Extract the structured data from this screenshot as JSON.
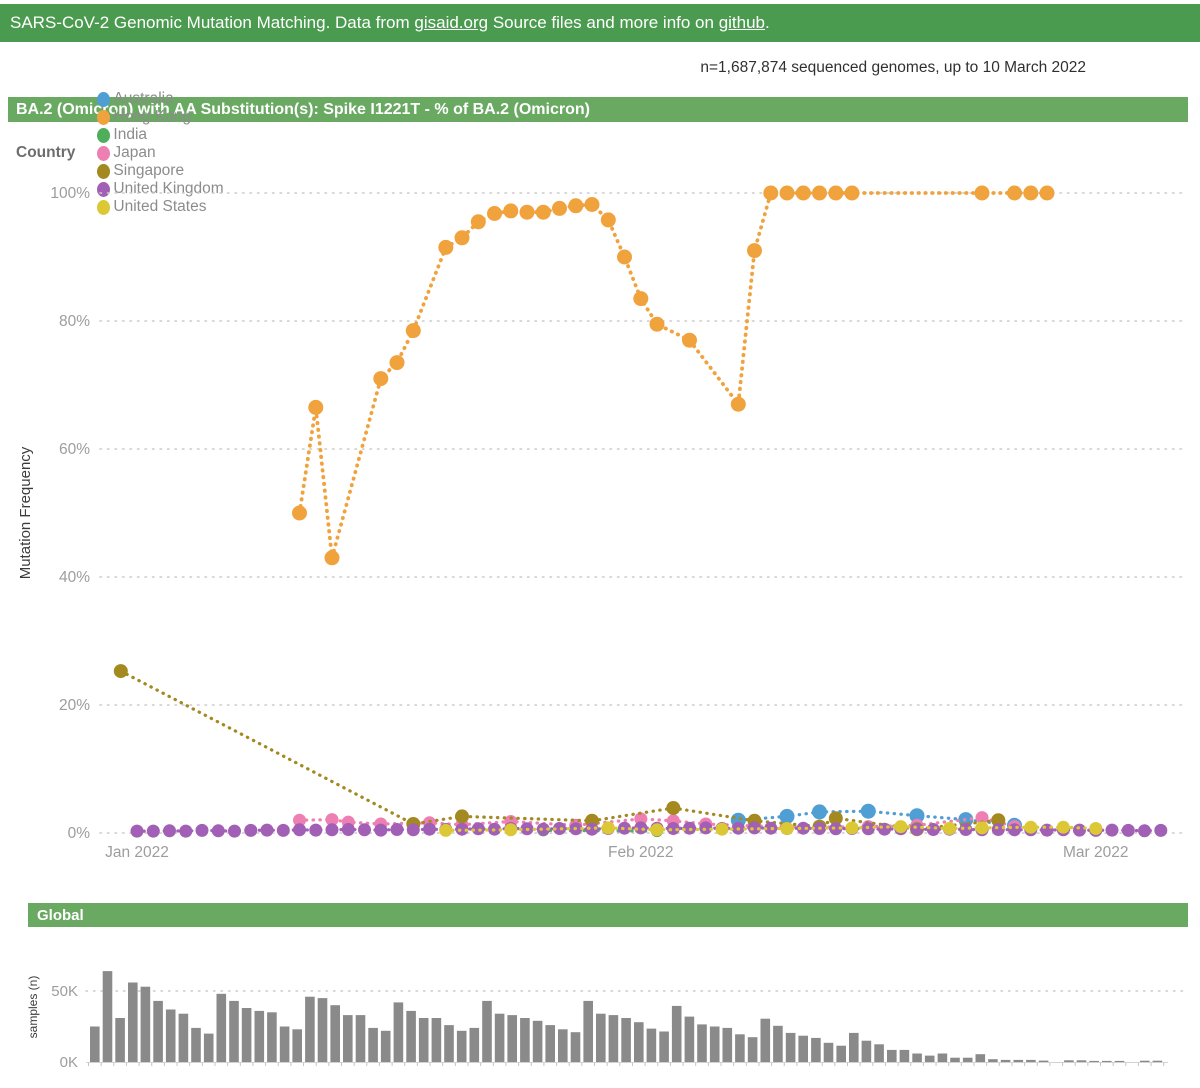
{
  "header": {
    "prefix": "SARS-CoV-2 Genomic Mutation Matching. Data from ",
    "gisaid_link": "gisaid.org",
    "mid": " Source files and more info on ",
    "github_link": "github",
    "suffix": "."
  },
  "subtitle": "n=1,687,874 sequenced genomes, up to 10 March 2022",
  "colors": {
    "header_green": "#4a9b4f",
    "section_green": "#69a962",
    "bar_gray": "#8a8a8a",
    "axis_text_gray": "#9d9d9d",
    "dark_label": "#3c3c3c",
    "gridline_gray": "#cbcbcb"
  },
  "chart_data": [
    {
      "type": "scatter",
      "title": "BA.2 (Omicron) with AA Substitution(s): Spike I1221T - % of BA.2 (Omicron)",
      "legend_label": "Country",
      "ylabel": "Mutation Frequency",
      "ylim": [
        0,
        100
      ],
      "grid": "dotted-horizontal",
      "legend_position": "top",
      "y_ticks": [
        {
          "v": 0,
          "label": "0%"
        },
        {
          "v": 20,
          "label": "20%"
        },
        {
          "v": 40,
          "label": "40%"
        },
        {
          "v": 60,
          "label": "60%"
        },
        {
          "v": 80,
          "label": "80%"
        },
        {
          "v": 100,
          "label": "100%"
        }
      ],
      "x_ticks": [
        {
          "date": "2022-01-01",
          "label": "Jan 2022"
        },
        {
          "date": "2022-02-01",
          "label": "Feb 2022"
        },
        {
          "date": "2022-03-01",
          "label": "Mar 2022"
        }
      ],
      "series": [
        {
          "name": "Australia",
          "color": "#4f9fd4",
          "marker_r": 7.5,
          "points": [
            [
              "2022-02-07",
              2.0
            ],
            [
              "2022-02-10",
              2.6
            ],
            [
              "2022-02-12",
              3.3
            ],
            [
              "2022-02-15",
              3.4
            ],
            [
              "2022-02-18",
              2.7
            ],
            [
              "2022-02-21",
              2.1
            ],
            [
              "2022-02-24",
              1.2
            ]
          ]
        },
        {
          "name": "Hong Kong",
          "color": "#f0a23d",
          "marker_r": 7.5,
          "points": [
            [
              "2022-01-11",
              50
            ],
            [
              "2022-01-12",
              66.5
            ],
            [
              "2022-01-13",
              43
            ],
            [
              "2022-01-16",
              71
            ],
            [
              "2022-01-17",
              73.5
            ],
            [
              "2022-01-18",
              78.5
            ],
            [
              "2022-01-20",
              91.5
            ],
            [
              "2022-01-21",
              93
            ],
            [
              "2022-01-22",
              95.5
            ],
            [
              "2022-01-23",
              96.8
            ],
            [
              "2022-01-24",
              97.2
            ],
            [
              "2022-01-25",
              97
            ],
            [
              "2022-01-26",
              97
            ],
            [
              "2022-01-27",
              97.6
            ],
            [
              "2022-01-28",
              98
            ],
            [
              "2022-01-29",
              98.2
            ],
            [
              "2022-01-30",
              95.8
            ],
            [
              "2022-01-31",
              90
            ],
            [
              "2022-02-01",
              83.5
            ],
            [
              "2022-02-02",
              79.5
            ],
            [
              "2022-02-04",
              77
            ],
            [
              "2022-02-07",
              67
            ],
            [
              "2022-02-08",
              91
            ],
            [
              "2022-02-09",
              100
            ],
            [
              "2022-02-10",
              100
            ],
            [
              "2022-02-11",
              100
            ],
            [
              "2022-02-12",
              100
            ],
            [
              "2022-02-13",
              100
            ],
            [
              "2022-02-14",
              100
            ],
            [
              "2022-02-22",
              100
            ],
            [
              "2022-02-24",
              100
            ],
            [
              "2022-02-25",
              100
            ],
            [
              "2022-02-26",
              100
            ]
          ]
        },
        {
          "name": "India",
          "color": "#4fae5c",
          "marker_r": 6,
          "points": [
            [
              "2022-01-26",
              0.4
            ],
            [
              "2022-02-02",
              0.3
            ]
          ]
        },
        {
          "name": "Japan",
          "color": "#ee7fb3",
          "marker_r": 6.5,
          "points": [
            [
              "2022-01-11",
              2.0
            ],
            [
              "2022-01-13",
              2.1
            ],
            [
              "2022-01-14",
              1.7
            ],
            [
              "2022-01-16",
              1.4
            ],
            [
              "2022-01-19",
              1.6
            ],
            [
              "2022-01-21",
              1.3
            ],
            [
              "2022-01-24",
              1.8
            ],
            [
              "2022-01-28",
              1.2
            ],
            [
              "2022-02-01",
              2.2
            ],
            [
              "2022-02-03",
              1.9
            ],
            [
              "2022-02-05",
              1.4
            ],
            [
              "2022-02-08",
              1.1
            ],
            [
              "2022-02-12",
              0.9
            ],
            [
              "2022-02-15",
              1.0
            ],
            [
              "2022-02-18",
              1.2
            ],
            [
              "2022-02-22",
              2.4
            ],
            [
              "2022-02-24",
              1.0
            ]
          ]
        },
        {
          "name": "Singapore",
          "color": "#a3891f",
          "marker_r": 7,
          "points": [
            [
              "2021-12-31",
              25.3
            ],
            [
              "2022-01-18",
              1.4
            ],
            [
              "2022-01-21",
              2.6
            ],
            [
              "2022-01-29",
              1.9
            ],
            [
              "2022-02-03",
              3.9
            ],
            [
              "2022-02-08",
              1.9
            ],
            [
              "2022-02-12",
              1.0
            ],
            [
              "2022-02-13",
              2.3
            ],
            [
              "2022-02-18",
              0.6
            ],
            [
              "2022-02-23",
              2.0
            ]
          ]
        },
        {
          "name": "United Kingdom",
          "color": "#a160b5",
          "marker_r": 6.5,
          "points": [
            [
              "2022-01-01",
              0.3
            ],
            [
              "2022-01-02",
              0.3
            ],
            [
              "2022-01-03",
              0.35
            ],
            [
              "2022-01-04",
              0.3
            ],
            [
              "2022-01-05",
              0.4
            ],
            [
              "2022-01-06",
              0.35
            ],
            [
              "2022-01-07",
              0.3
            ],
            [
              "2022-01-08",
              0.4
            ],
            [
              "2022-01-09",
              0.45
            ],
            [
              "2022-01-10",
              0.4
            ],
            [
              "2022-01-11",
              0.5
            ],
            [
              "2022-01-12",
              0.45
            ],
            [
              "2022-01-13",
              0.5
            ],
            [
              "2022-01-14",
              0.55
            ],
            [
              "2022-01-15",
              0.5
            ],
            [
              "2022-01-16",
              0.45
            ],
            [
              "2022-01-17",
              0.55
            ],
            [
              "2022-01-18",
              0.5
            ],
            [
              "2022-01-19",
              0.6
            ],
            [
              "2022-01-20",
              0.55
            ],
            [
              "2022-01-21",
              0.6
            ],
            [
              "2022-01-22",
              0.65
            ],
            [
              "2022-01-23",
              0.6
            ],
            [
              "2022-01-24",
              0.7
            ],
            [
              "2022-01-25",
              0.65
            ],
            [
              "2022-01-26",
              0.6
            ],
            [
              "2022-01-27",
              0.7
            ],
            [
              "2022-01-28",
              0.65
            ],
            [
              "2022-01-29",
              0.6
            ],
            [
              "2022-01-30",
              0.7
            ],
            [
              "2022-01-31",
              0.75
            ],
            [
              "2022-02-01",
              0.8
            ],
            [
              "2022-02-02",
              0.75
            ],
            [
              "2022-02-03",
              0.7
            ],
            [
              "2022-02-04",
              0.75
            ],
            [
              "2022-02-05",
              0.8
            ],
            [
              "2022-02-06",
              0.7
            ],
            [
              "2022-02-07",
              0.75
            ],
            [
              "2022-02-08",
              0.8
            ],
            [
              "2022-02-09",
              0.75
            ],
            [
              "2022-02-10",
              0.7
            ],
            [
              "2022-02-11",
              0.75
            ],
            [
              "2022-02-12",
              0.7
            ],
            [
              "2022-02-13",
              0.65
            ],
            [
              "2022-02-14",
              0.7
            ],
            [
              "2022-02-15",
              0.65
            ],
            [
              "2022-02-16",
              0.6
            ],
            [
              "2022-02-17",
              0.65
            ],
            [
              "2022-02-18",
              0.6
            ],
            [
              "2022-02-19",
              0.55
            ],
            [
              "2022-02-20",
              0.6
            ],
            [
              "2022-02-21",
              0.55
            ],
            [
              "2022-02-22",
              0.5
            ],
            [
              "2022-02-23",
              0.55
            ],
            [
              "2022-02-24",
              0.5
            ],
            [
              "2022-02-25",
              0.5
            ],
            [
              "2022-02-26",
              0.45
            ],
            [
              "2022-02-27",
              0.5
            ],
            [
              "2022-02-28",
              0.45
            ],
            [
              "2022-03-01",
              0.4
            ],
            [
              "2022-03-02",
              0.45
            ],
            [
              "2022-03-03",
              0.4
            ],
            [
              "2022-03-04",
              0.35
            ],
            [
              "2022-03-05",
              0.4
            ]
          ]
        },
        {
          "name": "United States",
          "color": "#dcc835",
          "marker_r": 6.5,
          "points": [
            [
              "2022-01-20",
              0.4
            ],
            [
              "2022-01-24",
              0.5
            ],
            [
              "2022-01-30",
              0.8
            ],
            [
              "2022-02-02",
              0.5
            ],
            [
              "2022-02-06",
              0.6
            ],
            [
              "2022-02-10",
              0.7
            ],
            [
              "2022-02-14",
              0.8
            ],
            [
              "2022-02-17",
              1.0
            ],
            [
              "2022-02-20",
              0.7
            ],
            [
              "2022-02-22",
              0.8
            ],
            [
              "2022-02-25",
              0.9
            ],
            [
              "2022-02-27",
              0.9
            ],
            [
              "2022-03-01",
              0.7
            ]
          ]
        }
      ]
    },
    {
      "type": "bar",
      "title": "Global",
      "ylabel": "samples (n)",
      "unit": "thousands",
      "grid": "dotted-horizontal",
      "y_ticks": [
        {
          "v": 0,
          "label": "0K"
        },
        {
          "v": 50,
          "label": "50K"
        }
      ],
      "values": [
        25,
        64,
        31,
        56,
        53,
        43,
        37,
        34,
        24,
        20,
        48,
        43,
        38,
        36,
        35,
        25,
        23,
        46,
        45,
        40,
        33,
        33,
        24,
        22,
        42,
        36,
        31,
        31,
        26,
        22,
        24,
        43,
        34,
        33,
        31,
        29,
        26,
        23,
        21,
        43,
        34,
        33,
        31,
        28,
        23.5,
        21.5,
        39.5,
        32,
        26.5,
        25,
        24,
        19.5,
        17.5,
        30.5,
        25.5,
        20.5,
        18.5,
        17,
        13.5,
        11.5,
        20.5,
        15,
        12.5,
        8.5,
        8.5,
        6,
        4.5,
        6,
        3,
        3,
        5.5,
        2,
        1.5,
        1.5,
        1.5,
        1,
        0,
        1.2,
        1.2,
        0.8,
        0.8,
        0.8,
        0,
        0.9,
        0.9
      ]
    }
  ]
}
